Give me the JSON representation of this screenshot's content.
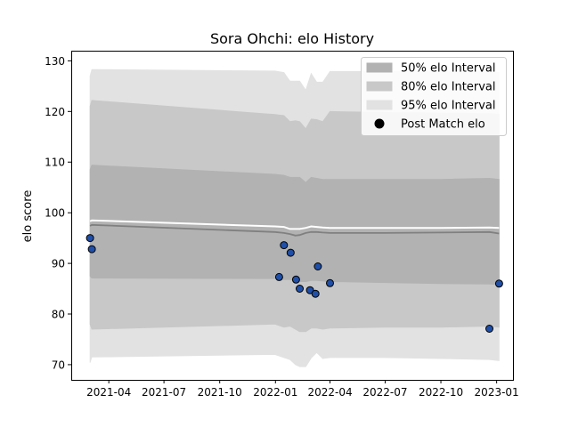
{
  "chart_data": {
    "type": "area",
    "title": "Sora Ohchi: elo History",
    "xlabel": "",
    "ylabel": "elo score",
    "xlim": [
      "2021-01-29",
      "2023-01-28"
    ],
    "ylim": [
      67,
      132
    ],
    "x_ticks": [
      "2021-04",
      "2021-07",
      "2021-10",
      "2022-01",
      "2022-04",
      "2022-07",
      "2022-10",
      "2023-01"
    ],
    "x_tick_dates": [
      "2021-04-01",
      "2021-07-01",
      "2021-10-01",
      "2022-01-01",
      "2022-04-01",
      "2022-07-01",
      "2022-10-01",
      "2023-01-01"
    ],
    "y_ticks": [
      70,
      80,
      90,
      100,
      110,
      120,
      130
    ],
    "legend_position": "top-right",
    "legend": [
      {
        "label": "50% elo Interval",
        "color": "#b2b2b2",
        "kind": "patch"
      },
      {
        "label": "80% elo Interval",
        "color": "#c8c8c8",
        "kind": "patch"
      },
      {
        "label": "95% elo Interval",
        "color": "#e2e2e2",
        "kind": "patch"
      },
      {
        "label": "Post Match elo",
        "color": "#000000",
        "kind": "marker"
      }
    ],
    "bands": [
      {
        "name": "95% elo Interval",
        "color": "#e2e2e2",
        "x": [
          "2021-03-01",
          "2021-03-04",
          "2021-12-31",
          "2022-01-15",
          "2022-01-25",
          "2022-02-03",
          "2022-02-10",
          "2022-02-20",
          "2022-03-01",
          "2022-03-10",
          "2022-03-20",
          "2022-04-01",
          "2022-07-01",
          "2022-10-01",
          "2022-12-20",
          "2023-01-05"
        ],
        "upper": [
          127.0,
          128.3,
          128.0,
          127.7,
          126.0,
          126.0,
          126.0,
          124.2,
          127.5,
          125.8,
          125.8,
          127.9,
          127.9,
          127.9,
          127.9,
          127.7
        ],
        "lower": [
          70.4,
          71.5,
          72.0,
          71.4,
          71.0,
          70.0,
          69.6,
          69.6,
          71.3,
          72.4,
          71.2,
          71.4,
          71.4,
          71.2,
          71.0,
          70.8
        ]
      },
      {
        "name": "80% elo Interval",
        "color": "#c8c8c8",
        "x": [
          "2021-03-01",
          "2021-03-04",
          "2021-12-31",
          "2022-01-15",
          "2022-01-25",
          "2022-02-03",
          "2022-02-10",
          "2022-02-20",
          "2022-03-01",
          "2022-03-10",
          "2022-03-20",
          "2022-04-01",
          "2022-07-01",
          "2022-10-01",
          "2022-12-20",
          "2023-01-05"
        ],
        "upper": [
          121.0,
          122.2,
          119.4,
          119.2,
          118.0,
          118.2,
          118.0,
          116.6,
          118.5,
          118.4,
          118.0,
          120.0,
          119.8,
          119.7,
          119.6,
          119.5
        ],
        "lower": [
          78.0,
          77.0,
          78.0,
          77.4,
          77.6,
          77.0,
          76.5,
          76.5,
          77.2,
          77.2,
          77.0,
          77.2,
          77.4,
          77.4,
          77.6,
          77.4
        ]
      },
      {
        "name": "50% elo Interval",
        "color": "#b2b2b2",
        "x": [
          "2021-03-01",
          "2021-03-04",
          "2021-12-31",
          "2022-01-15",
          "2022-01-25",
          "2022-02-03",
          "2022-02-10",
          "2022-02-20",
          "2022-03-01",
          "2022-03-10",
          "2022-03-20",
          "2022-04-01",
          "2022-07-01",
          "2022-10-01",
          "2022-12-20",
          "2023-01-05"
        ],
        "upper": [
          108.5,
          109.4,
          107.6,
          107.4,
          107.0,
          107.0,
          107.0,
          106.0,
          107.0,
          106.8,
          106.6,
          106.6,
          106.6,
          106.6,
          106.8,
          106.6
        ],
        "lower": [
          87.5,
          87.1,
          87.0,
          86.8,
          86.8,
          86.6,
          86.4,
          86.4,
          86.6,
          86.6,
          86.5,
          86.4,
          86.2,
          86.0,
          85.9,
          85.8
        ]
      }
    ],
    "series": [
      {
        "name": "mean",
        "color": "#808080",
        "x": [
          "2021-03-01",
          "2021-03-04",
          "2021-12-31",
          "2022-01-15",
          "2022-01-25",
          "2022-02-03",
          "2022-02-10",
          "2022-02-20",
          "2022-03-01",
          "2022-03-10",
          "2022-03-20",
          "2022-04-01",
          "2022-07-01",
          "2022-10-01",
          "2022-12-20",
          "2023-01-05"
        ],
        "values": [
          97.4,
          97.6,
          96.2,
          96.0,
          95.8,
          95.5,
          95.6,
          96.0,
          96.2,
          96.2,
          96.1,
          96.0,
          96.0,
          96.1,
          96.2,
          95.9
        ]
      },
      {
        "name": "upper line",
        "color": "#ffffff",
        "x": [
          "2021-03-01",
          "2021-03-04",
          "2021-12-31",
          "2022-01-15",
          "2022-01-25",
          "2022-02-03",
          "2022-02-10",
          "2022-02-20",
          "2022-03-01",
          "2022-03-10",
          "2022-03-20",
          "2022-04-01",
          "2022-07-01",
          "2022-10-01",
          "2022-12-20",
          "2023-01-05"
        ],
        "values": [
          98.3,
          98.5,
          97.3,
          97.2,
          96.8,
          96.8,
          96.8,
          97.0,
          97.3,
          97.2,
          97.1,
          97.0,
          97.0,
          97.0,
          97.1,
          97.0
        ]
      }
    ],
    "points": {
      "name": "Post Match elo",
      "color": "#1f4fa8",
      "x": [
        "2021-03-01",
        "2021-03-04",
        "2022-01-07",
        "2022-01-15",
        "2022-01-26",
        "2022-02-04",
        "2022-02-10",
        "2022-02-27",
        "2022-03-08",
        "2022-03-12",
        "2022-04-01",
        "2022-12-20",
        "2023-01-05"
      ],
      "y": [
        95.0,
        92.8,
        87.3,
        93.6,
        92.1,
        86.8,
        85.0,
        84.7,
        84.0,
        89.4,
        86.1,
        77.1,
        86.0
      ]
    }
  }
}
